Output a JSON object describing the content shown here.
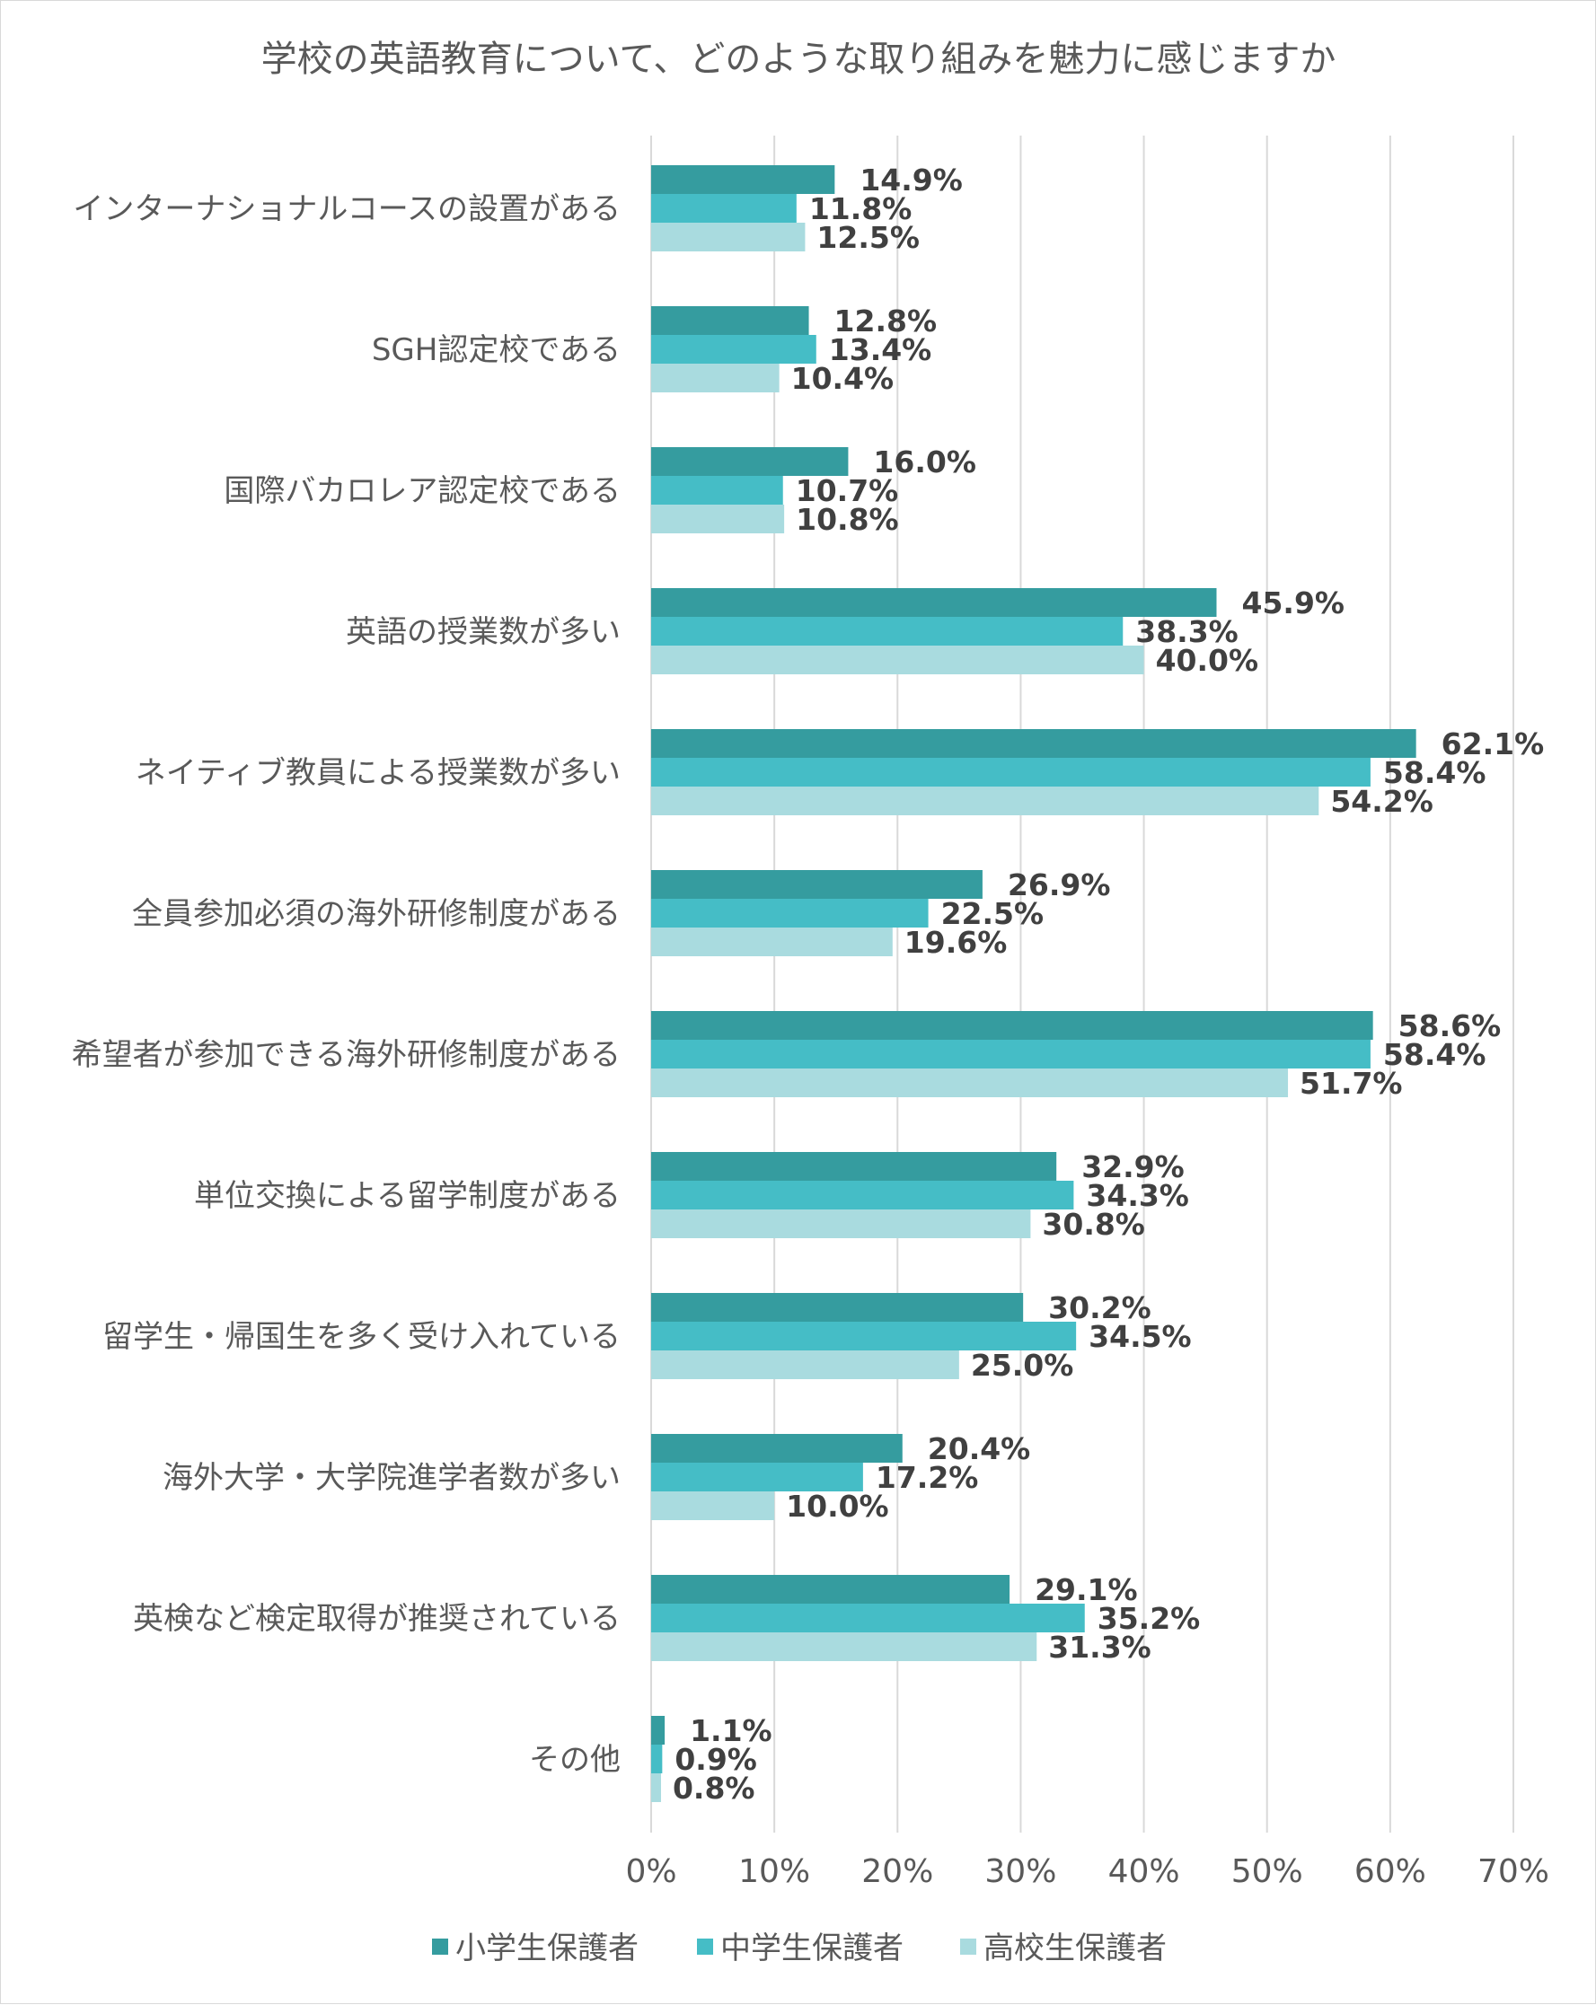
{
  "chart_data": {
    "type": "bar",
    "orientation": "horizontal",
    "title": "学校の英語教育について、どのような取り組みを魅力に感じますか",
    "categories": [
      "インターナショナルコースの設置がある",
      "SGH認定校である",
      "国際バカロレア認定校である",
      "英語の授業数が多い",
      "ネイティブ教員による授業数が多い",
      "全員参加必須の海外研修制度がある",
      "希望者が参加できる海外研修制度がある",
      "単位交換による留学制度がある",
      "留学生・帰国生を多く受け入れている",
      "海外大学・大学院進学者数が多い",
      "英検など検定取得が推奨されている",
      "その他"
    ],
    "series": [
      {
        "name": "小学生保護者",
        "color": "#359c9f",
        "values": [
          14.9,
          12.8,
          16.0,
          45.9,
          62.1,
          26.9,
          58.6,
          32.9,
          30.2,
          20.4,
          29.1,
          1.1
        ],
        "labels": [
          "14.9%",
          "12.8%",
          "16.0%",
          "45.9%",
          "62.1%",
          "26.9%",
          "58.6%",
          "32.9%",
          "30.2%",
          "20.4%",
          "29.1%",
          "1.1%"
        ]
      },
      {
        "name": "中学生保護者",
        "color": "#45bdc6",
        "values": [
          11.8,
          13.4,
          10.7,
          38.3,
          58.4,
          22.5,
          58.4,
          34.3,
          34.5,
          17.2,
          35.2,
          0.9
        ],
        "labels": [
          "11.8%",
          "13.4%",
          "10.7%",
          "38.3%",
          "58.4%",
          "22.5%",
          "58.4%",
          "34.3%",
          "34.5%",
          "17.2%",
          "35.2%",
          "0.9%"
        ]
      },
      {
        "name": "高校生保護者",
        "color": "#a9dbdf",
        "values": [
          12.5,
          10.4,
          10.8,
          40.0,
          54.2,
          19.6,
          51.7,
          30.8,
          25.0,
          10.0,
          31.3,
          0.8
        ],
        "labels": [
          "12.5%",
          "10.4%",
          "10.8%",
          "40.0%",
          "54.2%",
          "19.6%",
          "51.7%",
          "30.8%",
          "25.0%",
          "10.0%",
          "31.3%",
          "0.8%"
        ]
      }
    ],
    "xlim": [
      0,
      70
    ],
    "x_ticks": [
      0,
      10,
      20,
      30,
      40,
      50,
      60,
      70
    ],
    "x_tick_labels": [
      "0%",
      "10%",
      "20%",
      "30%",
      "40%",
      "50%",
      "60%",
      "70%"
    ],
    "grid": true,
    "legend_position": "bottom"
  }
}
